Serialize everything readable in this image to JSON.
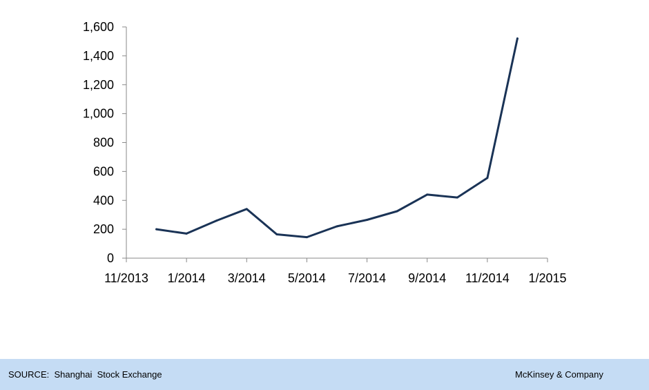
{
  "chart_data": {
    "type": "line",
    "title": "",
    "xlabel": "",
    "ylabel": "",
    "x_ticks": [
      "11/2013",
      "1/2014",
      "3/2014",
      "5/2014",
      "7/2014",
      "9/2014",
      "11/2014",
      "1/2015"
    ],
    "y_ticks": [
      "0",
      "200",
      "400",
      "600",
      "800",
      "1,000",
      "1,200",
      "1,400",
      "1,600"
    ],
    "ylim": [
      0,
      1600
    ],
    "xlim": [
      "11/2013",
      "1/2015"
    ],
    "grid": false,
    "series": [
      {
        "x": [
          "12/2013",
          "1/2014",
          "2/2014",
          "3/2014",
          "4/2014",
          "5/2014",
          "6/2014",
          "7/2014",
          "8/2014",
          "9/2014",
          "10/2014",
          "11/2014",
          "12/2014"
        ],
        "values": [
          200,
          170,
          260,
          340,
          165,
          145,
          220,
          265,
          325,
          440,
          420,
          555,
          1520
        ]
      }
    ],
    "colors": {
      "line": "#1a3356",
      "axis": "#888888"
    }
  },
  "footer": {
    "source": "SOURCE:  Shanghai  Stock Exchange",
    "brand": "McKinsey & Company",
    "background": "#c5dcf4"
  }
}
